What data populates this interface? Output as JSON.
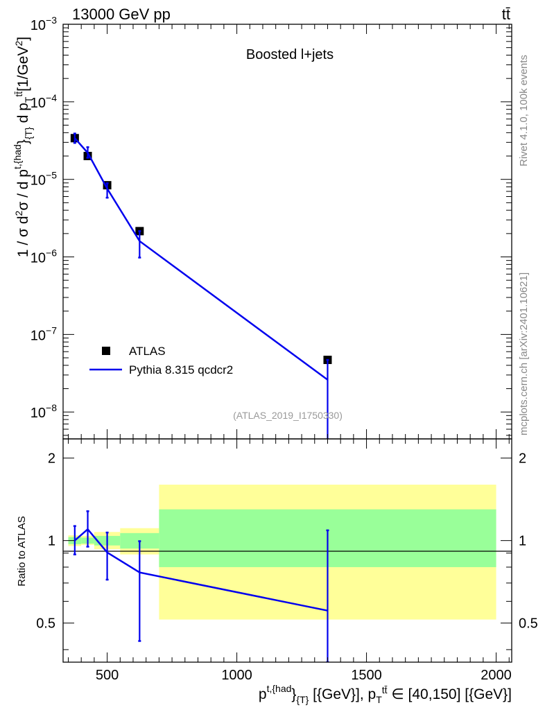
{
  "header": {
    "energy_label": "13000 GeV pp",
    "process_label": "tt̄"
  },
  "side_labels": {
    "rivet": "Rivet 4.1.0,  100k events",
    "mcplots": "mcplots.cern.ch [arXiv:2401.10621]"
  },
  "chart_data": [
    {
      "type": "line",
      "panel": "main",
      "title": "Boosted l+jets",
      "analysis_id": "(ATLAS_2019_I1750330)",
      "xlabel": "p_T^{t,{had}} [{GeV}], p_T^{tt̄} ∈ [40,150] [{GeV}]",
      "ylabel": "1 / σ d²σ / d p_T^{t,{had}} d p_T^{tt̄} [1/GeV²]",
      "xlim": [
        330,
        2060
      ],
      "ylim": [
        4.5e-09,
        0.001
      ],
      "yscale": "log",
      "y_ticks": [
        {
          "value": 1e-08,
          "base": "10",
          "exp": "−8"
        },
        {
          "value": 1e-07,
          "base": "10",
          "exp": "−7"
        },
        {
          "value": 1e-06,
          "base": "10",
          "exp": "−6"
        },
        {
          "value": 1e-05,
          "base": "10",
          "exp": "−5"
        },
        {
          "value": 0.0001,
          "base": "10",
          "exp": "−4"
        },
        {
          "value": 0.001,
          "base": "10",
          "exp": "−3"
        }
      ],
      "legend": {
        "position": "lower-left",
        "entries": [
          {
            "label": "ATLAS",
            "style": "marker",
            "color": "#000000"
          },
          {
            "label": "Pythia 8.315 qcdcr2",
            "style": "line",
            "color": "#0000ee"
          }
        ]
      },
      "series": [
        {
          "name": "ATLAS",
          "color": "#000000",
          "points": [
            {
              "x": 375,
              "y": 3.4e-05
            },
            {
              "x": 425,
              "y": 2e-05
            },
            {
              "x": 500,
              "y": 8.4e-06
            },
            {
              "x": 625,
              "y": 2.15e-06
            },
            {
              "x": 1350,
              "y": 4.7e-08
            }
          ]
        },
        {
          "name": "Pythia 8.315 qcdcr2",
          "color": "#0000ee",
          "points": [
            {
              "x": 375,
              "y": 3.4e-05,
              "ylo": 2.95e-05,
              "yhi": 3.9e-05
            },
            {
              "x": 425,
              "y": 2.2e-05,
              "ylo": 1.9e-05,
              "yhi": 2.6e-05
            },
            {
              "x": 500,
              "y": 7.6e-06,
              "ylo": 5.8e-06,
              "yhi": 8.9e-06
            },
            {
              "x": 625,
              "y": 1.6e-06,
              "ylo": 9.8e-07,
              "yhi": 2.15e-06
            },
            {
              "x": 1350,
              "y": 2.6e-08,
              "ylo": 1e-10,
              "yhi": 4.7e-08
            }
          ]
        }
      ]
    },
    {
      "type": "line",
      "panel": "ratio",
      "ylabel": "Ratio to ATLAS",
      "xlim": [
        330,
        2060
      ],
      "ylim": [
        0.36,
        2.35
      ],
      "x_ticks": [
        500,
        1000,
        1500,
        2000
      ],
      "y_ticks": [
        0.5,
        1,
        2
      ],
      "bands": [
        {
          "xlo": 350,
          "xhi": 400,
          "inner": [
            0.97,
            1.03
          ],
          "outer": [
            0.955,
            1.045
          ]
        },
        {
          "xlo": 400,
          "xhi": 450,
          "inner": [
            0.975,
            1.025
          ],
          "outer": [
            0.965,
            1.04
          ]
        },
        {
          "xlo": 450,
          "xhi": 550,
          "inner": [
            0.96,
            1.04
          ],
          "outer": [
            0.93,
            1.075
          ]
        },
        {
          "xlo": 550,
          "xhi": 700,
          "inner": [
            0.935,
            1.065
          ],
          "outer": [
            0.89,
            1.11
          ]
        },
        {
          "xlo": 700,
          "xhi": 2000,
          "inner": [
            0.8,
            1.3
          ],
          "outer": [
            0.515,
            1.6
          ]
        }
      ],
      "band_colors": {
        "inner": "#99ff99",
        "outer": "#ffff99"
      },
      "series": [
        {
          "name": "Pythia 8.315 qcdcr2",
          "color": "#0000ee",
          "points": [
            {
              "x": 375,
              "y": 1.0,
              "ylo": 0.89,
              "yhi": 1.13
            },
            {
              "x": 425,
              "y": 1.1,
              "ylo": 0.95,
              "yhi": 1.28
            },
            {
              "x": 500,
              "y": 0.905,
              "ylo": 0.72,
              "yhi": 1.07
            },
            {
              "x": 625,
              "y": 0.765,
              "ylo": 0.43,
              "yhi": 0.995
            },
            {
              "x": 1350,
              "y": 0.555,
              "ylo": 0.36,
              "yhi": 1.09
            }
          ]
        }
      ]
    }
  ]
}
